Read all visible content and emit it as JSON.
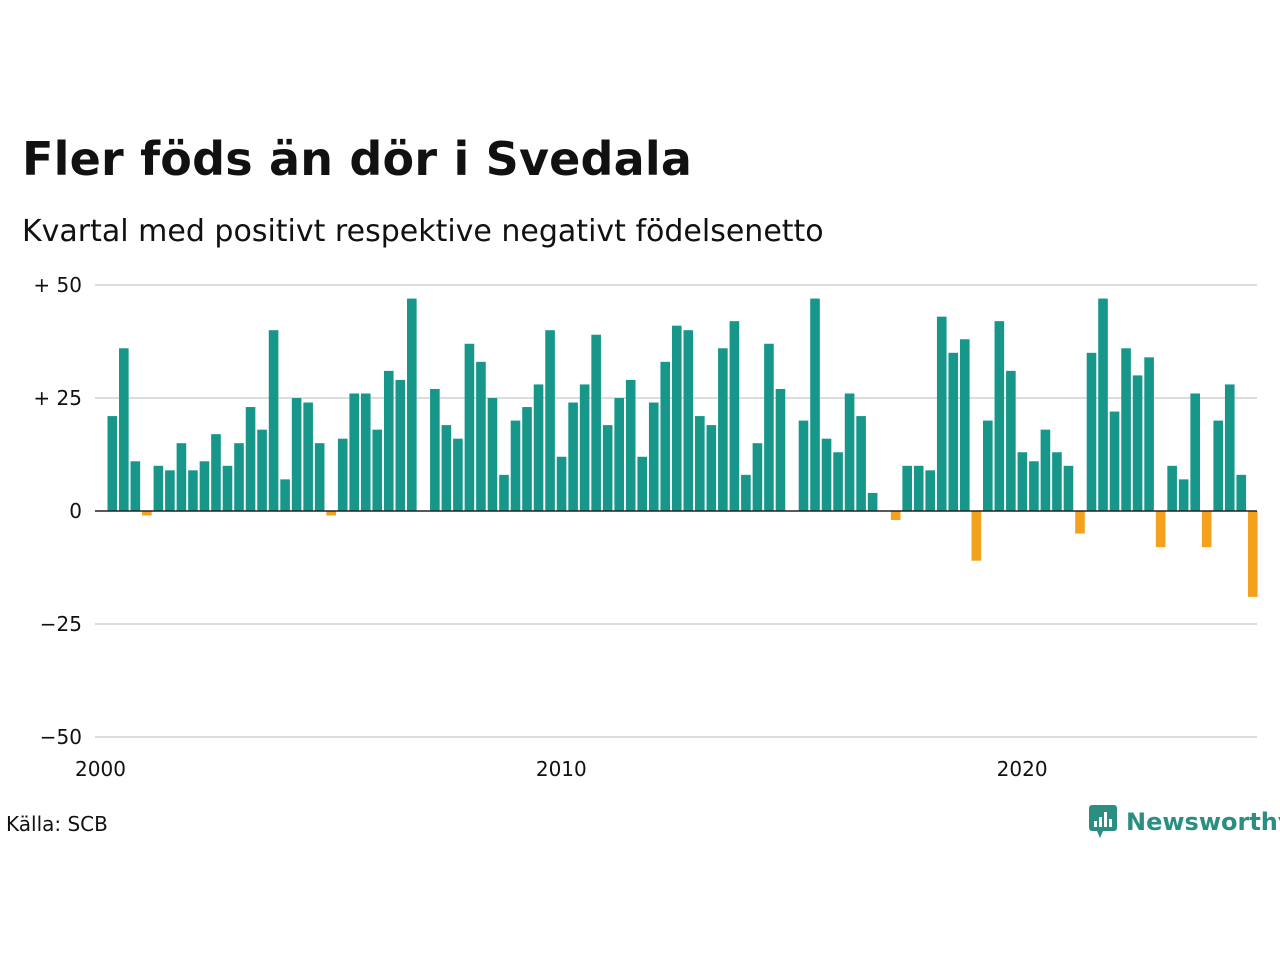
{
  "title": "Fler föds än dör i Svedala",
  "subtitle": "Kvartal med positivt respektive negativt födelsenetto",
  "source": "Källa: SCB",
  "brand": {
    "name": "Newsworthy",
    "icon": "newsworthy-logo-icon"
  },
  "colors": {
    "positive": "#17968a",
    "negative": "#f4a11d",
    "grid": "#dddddd",
    "zero": "#222222",
    "brand": "#2a8f80"
  },
  "chart_data": {
    "type": "bar",
    "title": "Fler föds än dör i Svedala",
    "subtitle": "Kvartal med positivt respektive negativt födelsenetto",
    "xlabel": "",
    "ylabel": "",
    "ylim": [
      -50,
      50
    ],
    "xlim": [
      "2000-Q1",
      "2024-Q4"
    ],
    "y_ticks": [
      {
        "value": 50,
        "label": "+ 50"
      },
      {
        "value": 25,
        "label": "+ 25"
      },
      {
        "value": 0,
        "label": "0"
      },
      {
        "value": -25,
        "label": "−25"
      },
      {
        "value": -50,
        "label": "−50"
      }
    ],
    "x_ticks": [
      {
        "label": "2000",
        "quarter": "2000-Q1"
      },
      {
        "label": "2010",
        "quarter": "2010-Q1"
      },
      {
        "label": "2020",
        "quarter": "2020-Q1"
      }
    ],
    "grid": true,
    "legend": "none",
    "start_quarter": "2000-Q1",
    "values": [
      21,
      36,
      11,
      -1,
      10,
      9,
      15,
      9,
      11,
      17,
      10,
      15,
      23,
      18,
      40,
      7,
      25,
      24,
      15,
      -1,
      16,
      26,
      26,
      18,
      31,
      29,
      47,
      0,
      27,
      19,
      16,
      37,
      33,
      25,
      8,
      20,
      23,
      28,
      40,
      12,
      24,
      28,
      39,
      19,
      25,
      29,
      12,
      24,
      33,
      41,
      40,
      21,
      19,
      36,
      42,
      8,
      15,
      37,
      27,
      0,
      20,
      47,
      16,
      13,
      26,
      21,
      4,
      0,
      -2,
      10,
      10,
      9,
      43,
      35,
      38,
      -11,
      20,
      42,
      31,
      13,
      11,
      18,
      13,
      10,
      -5,
      35,
      47,
      22,
      36,
      30,
      34,
      -8,
      10,
      7,
      26,
      -8,
      20,
      28,
      8,
      -19
    ]
  }
}
